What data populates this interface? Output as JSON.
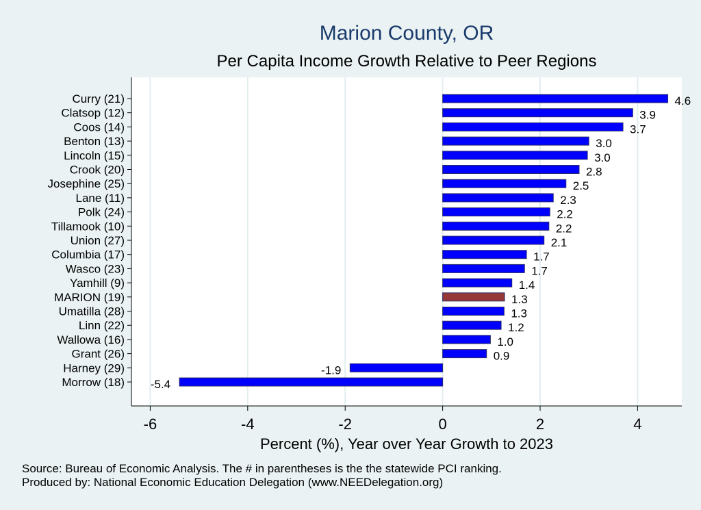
{
  "chart_data": {
    "type": "bar",
    "orientation": "horizontal",
    "title": "Marion County, OR",
    "subtitle": "Per Capita Income Growth Relative to Peer Regions",
    "xlabel": "Percent (%), Year over Year Growth to 2023",
    "ylabel": "",
    "xlim": [
      -6.4,
      5.0
    ],
    "xticks": [
      -6,
      -4,
      -2,
      0,
      2,
      4
    ],
    "xtick_labels": [
      "-6",
      "-4",
      "-2",
      "0",
      "2",
      "4"
    ],
    "grid": true,
    "categories": [
      "Curry (21)",
      "Clatsop (12)",
      "Coos (14)",
      "Benton (13)",
      "Lincoln (15)",
      "Crook (20)",
      "Josephine (25)",
      "Lane (11)",
      "Polk (24)",
      "Tillamook (10)",
      "Union (27)",
      "Columbia (17)",
      "Wasco (23)",
      "Yamhill  (9)",
      "MARION (19)",
      "Umatilla (28)",
      "Linn (22)",
      "Wallowa (16)",
      "Grant (26)",
      "Harney (29)",
      "Morrow (18)"
    ],
    "values": [
      4.62,
      3.9,
      3.7,
      3.0,
      2.97,
      2.8,
      2.53,
      2.27,
      2.2,
      2.18,
      2.08,
      1.72,
      1.68,
      1.42,
      1.27,
      1.26,
      1.2,
      0.98,
      0.9,
      -1.9,
      -5.4
    ],
    "value_labels": [
      "4.6",
      "3.9",
      "3.7",
      "3.0",
      "3.0",
      "2.8",
      "2.5",
      "2.3",
      "2.2",
      "2.2",
      "2.1",
      "1.7",
      "1.7",
      "1.4",
      "1.3",
      "1.3",
      "1.2",
      "1.0",
      "0.9",
      "-1.9",
      "-5.4"
    ],
    "highlight_index": 14,
    "colors": {
      "bar": "#0000ff",
      "highlight": "#943838",
      "background": "#eaf2f3",
      "plot": "#ffffff",
      "grid": "#e2eef0",
      "title": "#1a3a6b"
    }
  },
  "notes": {
    "source": "Source: Bureau of Economic Analysis. The # in parentheses is the the statewide PCI ranking.",
    "producer": "Produced by: National Economic Education Delegation (www.NEEDelegation.org)"
  }
}
